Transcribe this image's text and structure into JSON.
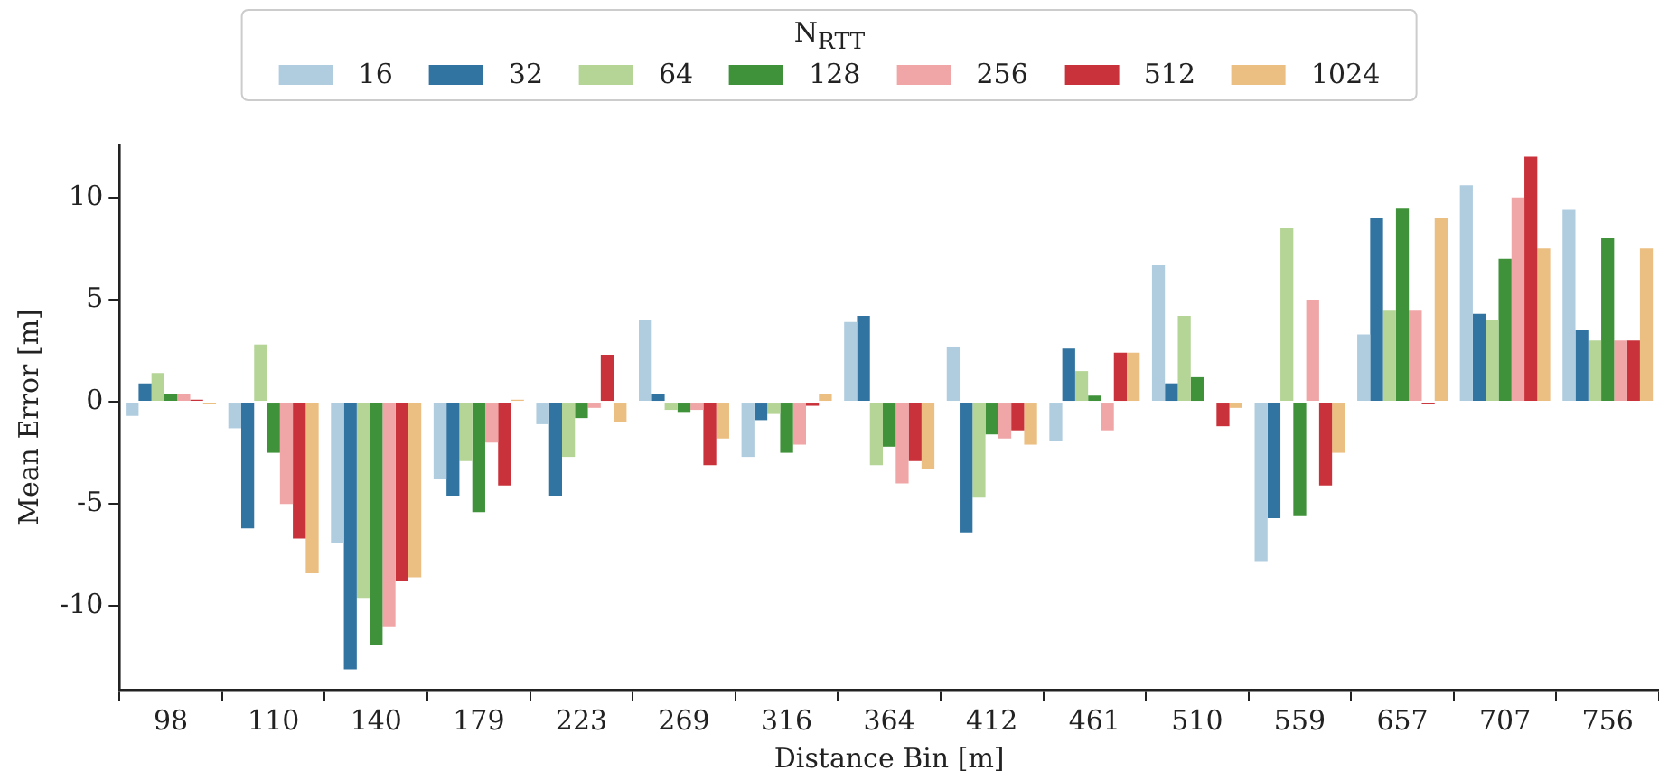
{
  "chart_data": {
    "type": "bar",
    "xlabel": "Distance Bin [m]",
    "ylabel": "Mean Error [m]",
    "legend_title": "N$_{RTT}$",
    "legend": "top",
    "categories": [
      "98",
      "110",
      "140",
      "179",
      "223",
      "269",
      "316",
      "364",
      "412",
      "461",
      "510",
      "559",
      "657",
      "707",
      "756"
    ],
    "ylim": [
      -14.1,
      12.6
    ],
    "yticks": [
      -10,
      -5,
      0,
      5,
      10
    ],
    "series": [
      {
        "name": "16",
        "color": "#b0cde0",
        "values": [
          -0.7,
          -1.3,
          -6.9,
          -3.8,
          -1.1,
          4.0,
          -2.7,
          3.9,
          2.7,
          -1.9,
          6.7,
          -7.8,
          3.3,
          10.6,
          9.4
        ]
      },
      {
        "name": "32",
        "color": "#3274a1",
        "values": [
          0.9,
          -6.2,
          -13.1,
          -4.6,
          -4.6,
          0.4,
          -0.9,
          4.2,
          -6.4,
          2.6,
          0.9,
          -5.7,
          9.0,
          4.3,
          3.5
        ]
      },
      {
        "name": "64",
        "color": "#b5d596",
        "values": [
          1.4,
          2.8,
          -9.6,
          -2.9,
          -2.7,
          -0.4,
          -0.6,
          -3.1,
          -4.7,
          1.5,
          4.2,
          8.5,
          4.5,
          4.0,
          3.0
        ]
      },
      {
        "name": "128",
        "color": "#3f923a",
        "values": [
          0.4,
          -2.5,
          -11.9,
          -5.4,
          -0.8,
          -0.5,
          -2.5,
          -2.2,
          -1.6,
          0.3,
          1.2,
          -5.6,
          9.5,
          7.0,
          8.0
        ]
      },
      {
        "name": "256",
        "color": "#f0a6a6",
        "values": [
          0.4,
          -5.0,
          -11.0,
          -2.0,
          -0.3,
          -0.4,
          -2.1,
          -4.0,
          -1.8,
          -1.4,
          null,
          5.0,
          4.5,
          10.0,
          3.0
        ]
      },
      {
        "name": "512",
        "color": "#c9323a",
        "values": [
          0.1,
          -6.7,
          -8.8,
          -4.1,
          2.3,
          -3.1,
          -0.2,
          -2.9,
          -1.4,
          2.4,
          -1.2,
          -4.1,
          -0.1,
          12.0,
          3.0
        ]
      },
      {
        "name": "1024",
        "color": "#ebbe81",
        "values": [
          -0.1,
          -8.4,
          -8.6,
          0.1,
          -1.0,
          -1.8,
          0.4,
          -3.3,
          -2.1,
          2.4,
          -0.3,
          -2.5,
          9.0,
          7.5,
          7.5
        ]
      }
    ]
  }
}
